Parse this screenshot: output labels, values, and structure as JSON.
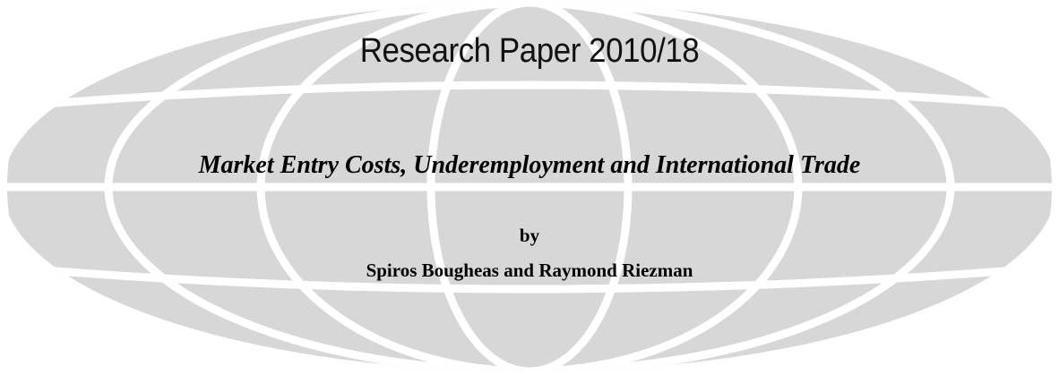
{
  "cover": {
    "series_title": "Research Paper 2010/18",
    "paper_title": "Market Entry Costs, Underemployment and International Trade",
    "by": "by",
    "authors": "Spiros Bougheas and Raymond Riezman"
  },
  "colors": {
    "globe_fill": "#d7d7d7",
    "globe_lines": "#ffffff",
    "text": "#000000"
  }
}
